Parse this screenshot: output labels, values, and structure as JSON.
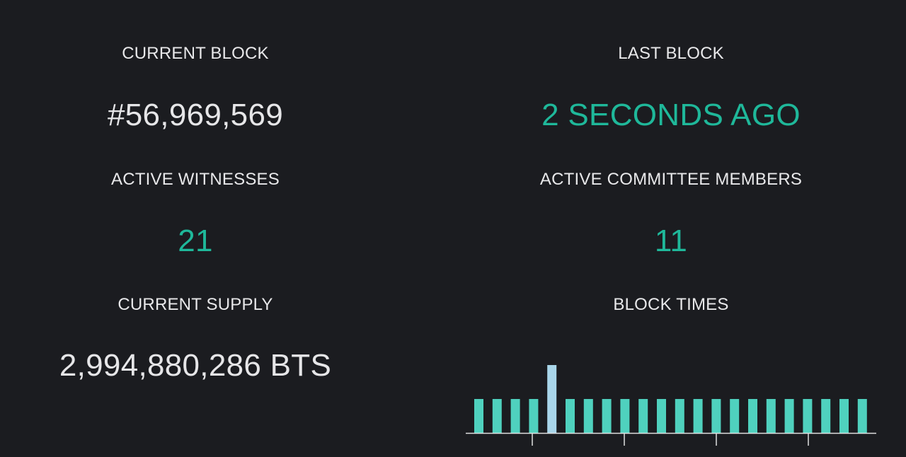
{
  "stats": {
    "current_block": {
      "label": "CURRENT BLOCK",
      "value": "#56,969,569"
    },
    "last_block": {
      "label": "LAST BLOCK",
      "value": "2 SECONDS AGO"
    },
    "active_witnesses": {
      "label": "ACTIVE WITNESSES",
      "value": "21"
    },
    "active_committee_members": {
      "label": "ACTIVE COMMITTEE MEMBERS",
      "value": "11"
    },
    "current_supply": {
      "label": "CURRENT SUPPLY",
      "value": "2,994,880,286 BTS"
    },
    "block_times": {
      "label": "BLOCK TIMES"
    }
  },
  "colors": {
    "background": "#1b1c20",
    "accent": "#1fb89a",
    "bar": "#4fd1be",
    "bar_highlight": "#a9d6ea",
    "axis": "#e0e0e0"
  },
  "chart_data": {
    "type": "bar",
    "title": "BLOCK TIMES",
    "values": [
      3,
      3,
      3,
      3,
      6,
      3,
      3,
      3,
      3,
      3,
      3,
      3,
      3,
      3,
      3,
      3,
      3,
      3,
      3,
      3,
      3,
      3
    ],
    "highlight_index": 4,
    "ylim": [
      0,
      6
    ],
    "axis_ticks": 4,
    "grid": false,
    "legend": "none"
  }
}
